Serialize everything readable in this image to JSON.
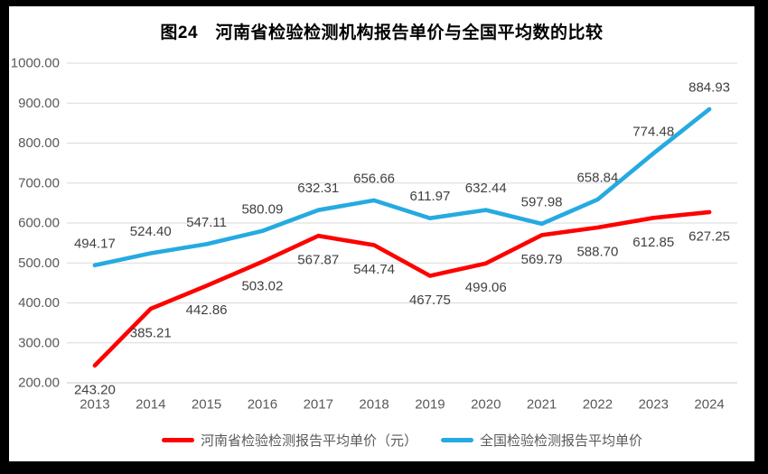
{
  "chart_data": {
    "type": "line",
    "title": "图24　河南省检验检测机构报告单价与全国平均数的比较",
    "categories": [
      "2013",
      "2014",
      "2015",
      "2016",
      "2017",
      "2018",
      "2019",
      "2020",
      "2021",
      "2022",
      "2023",
      "2024"
    ],
    "series": [
      {
        "name": "河南省检验检测报告平均单价（元）",
        "color": "#fe0000",
        "label_position": "below",
        "values": [
          243.2,
          385.21,
          442.86,
          503.02,
          567.87,
          544.74,
          467.75,
          499.06,
          569.79,
          588.7,
          612.85,
          627.25
        ]
      },
      {
        "name": "全国检验检测报告平均单价",
        "color": "#25aae1",
        "label_position": "above",
        "values": [
          494.17,
          524.4,
          547.11,
          580.09,
          632.31,
          656.66,
          611.97,
          632.44,
          597.98,
          658.84,
          774.48,
          884.93
        ]
      }
    ],
    "y_axis": {
      "min": 200,
      "max": 1000,
      "step": 100
    },
    "y_ticks": [
      "1000.00",
      "900.00",
      "800.00",
      "700.00",
      "600.00",
      "500.00",
      "400.00",
      "300.00",
      "200.00"
    ],
    "grid": true,
    "legend_position": "bottom",
    "grid_color": "#d9d9d9",
    "axis_line_color": "#c8c8c8",
    "axis_label_color": "#595959",
    "data_label_color": "#404040"
  }
}
